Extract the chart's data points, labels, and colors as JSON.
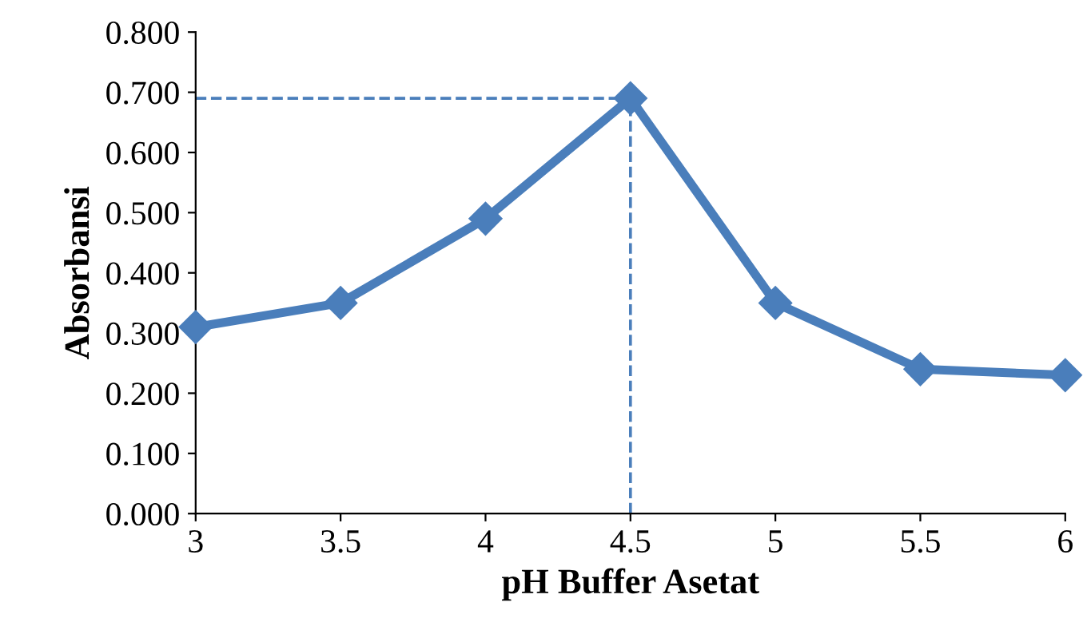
{
  "chart_data": {
    "type": "line",
    "xlabel": "pH Buffer Asetat",
    "ylabel": "Absorbansi",
    "x": [
      3,
      3.5,
      4,
      4.5,
      5,
      5.5,
      6
    ],
    "series": [
      {
        "color": "#4a7ebb",
        "values": [
          0.31,
          0.35,
          0.49,
          0.69,
          0.35,
          0.24,
          0.23
        ]
      }
    ],
    "marker": "diamond",
    "line_style": "solid",
    "grid": false,
    "legend": false,
    "xlim": [
      3,
      6
    ],
    "xticks": [
      3,
      3.5,
      4,
      4.5,
      5,
      5.5,
      6
    ],
    "ylim": [
      0,
      0.8
    ],
    "yticks": [
      {
        "value": 0,
        "label": "0.000"
      },
      {
        "value": 0.1,
        "label": "0.100"
      },
      {
        "value": 0.2,
        "label": "0.200"
      },
      {
        "value": 0.3,
        "label": "0.300"
      },
      {
        "value": 0.4,
        "label": "0.400"
      },
      {
        "value": 0.5,
        "label": "0.500"
      },
      {
        "value": 0.6,
        "label": "0.600"
      },
      {
        "value": 0.7,
        "label": "0.700"
      },
      {
        "value": 0.8,
        "label": "0.800"
      }
    ],
    "ref_lines": [
      {
        "axis": "y",
        "value": 0.69,
        "color": "#4a7ebb",
        "line_style": "dashed"
      },
      {
        "axis": "x",
        "value": 4.5,
        "color": "#4a7ebb",
        "line_style": "dashed"
      }
    ]
  }
}
